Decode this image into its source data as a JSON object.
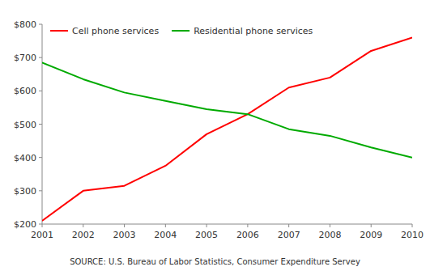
{
  "chart_data": {
    "type": "line",
    "x": [
      2001,
      2002,
      2003,
      2004,
      2005,
      2006,
      2007,
      2008,
      2009,
      2010
    ],
    "series": [
      {
        "name": "Cell phone services",
        "color": "#ff0000",
        "values": [
          210,
          300,
          315,
          375,
          470,
          530,
          610,
          640,
          720,
          760
        ]
      },
      {
        "name": "Residential phone services",
        "color": "#00aa00",
        "values": [
          685,
          635,
          595,
          570,
          545,
          530,
          485,
          465,
          430,
          400
        ]
      }
    ],
    "xlim": [
      2001,
      2010
    ],
    "xticks": [
      2001,
      2002,
      2003,
      2004,
      2005,
      2006,
      2007,
      2008,
      2009,
      2010
    ],
    "ylim": [
      200,
      800
    ],
    "yticks": [
      {
        "value": 200,
        "label": "$200"
      },
      {
        "value": 300,
        "label": "$300"
      },
      {
        "value": 400,
        "label": "$400"
      },
      {
        "value": 500,
        "label": "$500"
      },
      {
        "value": 600,
        "label": "$600"
      },
      {
        "value": 700,
        "label": "$700"
      },
      {
        "value": 800,
        "label": "$800"
      }
    ],
    "grid": false,
    "legend": "upper left",
    "annotations": [
      "SOURCE: U.S. Bureau of Labor Statistics, Consumer Expenditure Servey"
    ]
  }
}
